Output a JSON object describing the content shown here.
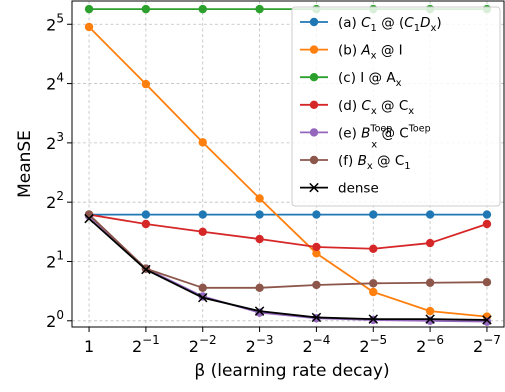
{
  "chart_data": {
    "type": "line",
    "xlabel": "β (learning rate decay)",
    "ylabel": "MeanSE",
    "y_scale": "log2",
    "grid": true,
    "legend_position": "top-right",
    "x_ticks": [
      {
        "value": 0,
        "base": "1",
        "exp": ""
      },
      {
        "value": 1,
        "base": "2",
        "exp": "−1"
      },
      {
        "value": 2,
        "base": "2",
        "exp": "−2"
      },
      {
        "value": 3,
        "base": "2",
        "exp": "−3"
      },
      {
        "value": 4,
        "base": "2",
        "exp": "−4"
      },
      {
        "value": 5,
        "base": "2",
        "exp": "−5"
      },
      {
        "value": 6,
        "base": "2",
        "exp": "−6"
      },
      {
        "value": 7,
        "base": "2",
        "exp": "−7"
      }
    ],
    "y_ticks": [
      {
        "value": 1,
        "base": "2",
        "exp": "0"
      },
      {
        "value": 2,
        "base": "2",
        "exp": "1"
      },
      {
        "value": 4,
        "base": "2",
        "exp": "2"
      },
      {
        "value": 8,
        "base": "2",
        "exp": "3"
      },
      {
        "value": 16,
        "base": "2",
        "exp": "4"
      },
      {
        "value": 32,
        "base": "2",
        "exp": "5"
      }
    ],
    "x": [
      1,
      0.5,
      0.25,
      0.125,
      0.0625,
      0.03125,
      0.015625,
      0.0078125
    ],
    "ylim": [
      0.93,
      42
    ],
    "series": [
      {
        "name": "(a) C₁ @ (C₁Dₓ)",
        "color": "#1f77b4",
        "marker": "circle",
        "values": [
          3.46,
          3.46,
          3.46,
          3.46,
          3.46,
          3.46,
          3.46,
          3.46
        ]
      },
      {
        "name": "(b) Aₓ @ I",
        "color": "#ff7f0e",
        "marker": "circle",
        "values": [
          31.0,
          15.9,
          8.05,
          4.18,
          2.2,
          1.4,
          1.12,
          1.05
        ]
      },
      {
        "name": "(c) I @ Aₓ",
        "color": "#2ca02c",
        "marker": "circle",
        "values": [
          38.2,
          38.2,
          38.2,
          38.2,
          38.2,
          38.2,
          38.2,
          38.2
        ]
      },
      {
        "name": "(d) Cₓ @ Cₓ",
        "color": "#d62728",
        "marker": "circle",
        "values": [
          3.46,
          3.1,
          2.83,
          2.6,
          2.37,
          2.32,
          2.48,
          3.1
        ]
      },
      {
        "name": "(e) BₓToep @ CToep",
        "color": "#9467bd",
        "marker": "circle",
        "values": [
          3.4,
          1.84,
          1.33,
          1.1,
          1.03,
          1.01,
          1.0,
          0.99
        ]
      },
      {
        "name": "(f) Bₓ @ C₁",
        "color": "#8c564b",
        "marker": "circle",
        "values": [
          3.46,
          1.84,
          1.47,
          1.47,
          1.52,
          1.55,
          1.56,
          1.57
        ]
      },
      {
        "name": "dense",
        "color": "#000000",
        "marker": "x",
        "values": [
          3.3,
          1.82,
          1.31,
          1.12,
          1.04,
          1.02,
          1.02,
          1.01
        ]
      }
    ],
    "legend": [
      {
        "pre": "(a) ",
        "segs": [
          [
            "C",
            ""
          ],
          [
            "1",
            "sub"
          ],
          [
            " @ (",
            ""
          ],
          [
            "C",
            ""
          ],
          [
            "1",
            "sub"
          ],
          [
            "D",
            ""
          ],
          [
            "x",
            "sub"
          ],
          [
            ")",
            ""
          ]
        ]
      },
      {
        "pre": "(b) ",
        "segs": [
          [
            "A",
            ""
          ],
          [
            "x",
            "sub"
          ],
          [
            " @ I",
            ""
          ]
        ]
      },
      {
        "pre": "(c) ",
        "segs": [
          [
            "I @ A",
            ""
          ],
          [
            "x",
            "sub"
          ]
        ]
      },
      {
        "pre": "(d) ",
        "segs": [
          [
            "C",
            ""
          ],
          [
            "x",
            "sub"
          ],
          [
            " @ C",
            ""
          ],
          [
            "x",
            "sub"
          ]
        ]
      },
      {
        "pre": "(e) ",
        "segs": [
          [
            "B",
            ""
          ],
          [
            "Toep",
            "sup"
          ],
          [
            "x",
            "subl"
          ],
          [
            " @ C",
            ""
          ],
          [
            "Toep",
            "sup"
          ]
        ]
      },
      {
        "pre": "(f) ",
        "segs": [
          [
            "B",
            ""
          ],
          [
            "x",
            "sub"
          ],
          [
            " @ C",
            ""
          ],
          [
            "1",
            "sub"
          ]
        ]
      },
      {
        "pre": "",
        "segs": [
          [
            "dense",
            "plain"
          ]
        ]
      }
    ]
  }
}
